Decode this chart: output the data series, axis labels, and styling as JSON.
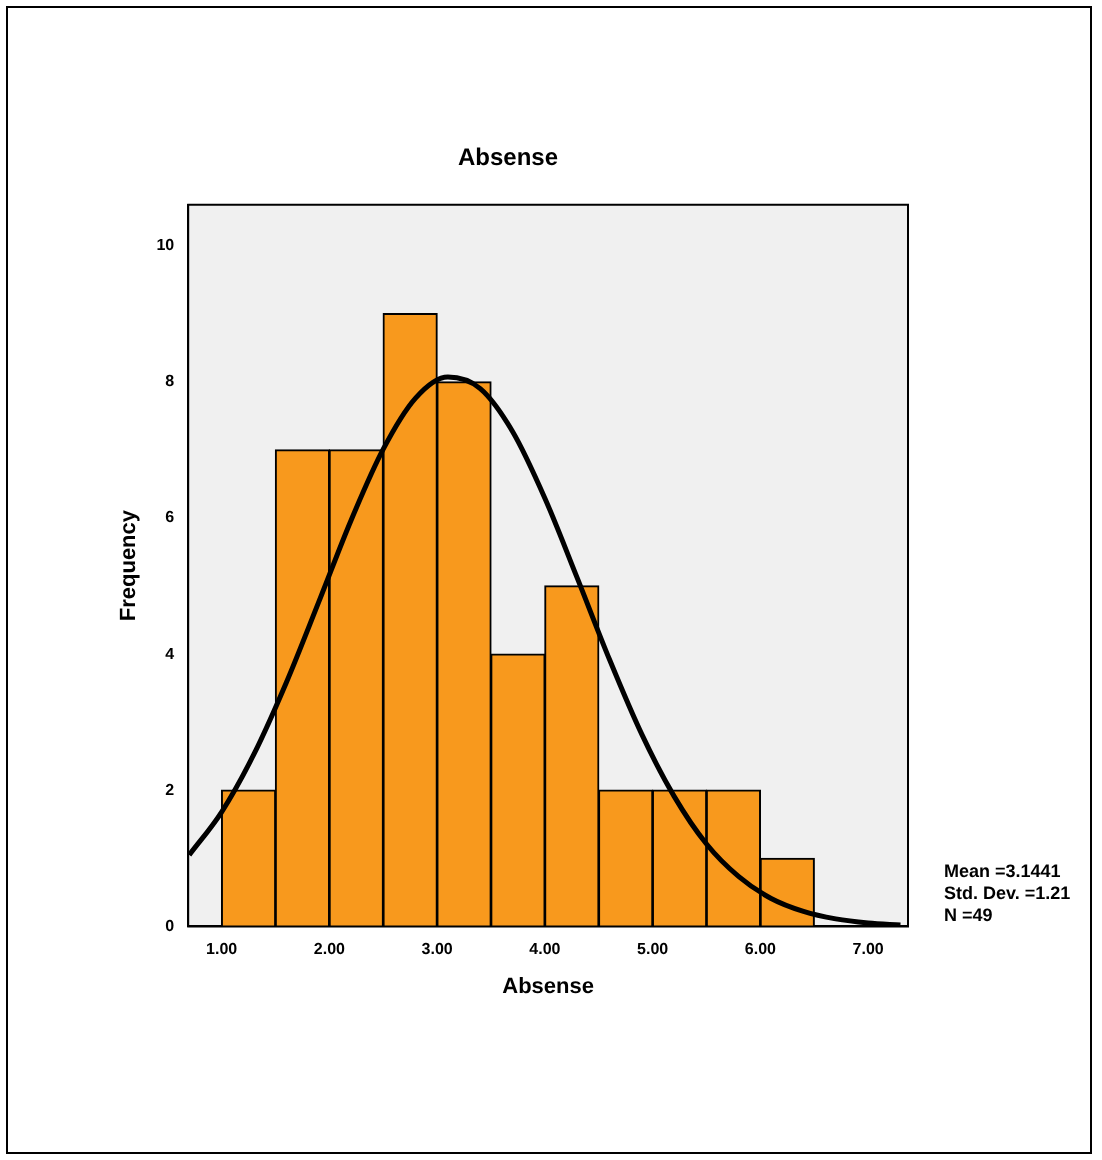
{
  "chart_data": {
    "type": "histogram",
    "title": "Absense",
    "xlabel": "Absense",
    "ylabel": "Frequency",
    "bins": [
      1.0,
      1.5,
      2.0,
      2.5,
      3.0,
      3.5,
      4.0,
      4.5,
      5.0,
      5.5,
      6.0,
      6.5
    ],
    "values": [
      2,
      7,
      7,
      9,
      8,
      4,
      5,
      2,
      2,
      2,
      1
    ],
    "color": "#f8991d",
    "series": [
      {
        "type": "line",
        "color": "#000000",
        "x": [
          0.7,
          1.0,
          1.3,
          1.6,
          1.9,
          2.2,
          2.5,
          2.8,
          3.1,
          3.4,
          3.7,
          4.0,
          4.3,
          4.6,
          4.9,
          5.2,
          5.5,
          5.8,
          6.1,
          6.4,
          6.7,
          7.0,
          7.3
        ],
        "values": [
          1.05,
          1.68,
          2.53,
          3.58,
          4.76,
          5.96,
          7.01,
          7.76,
          8.07,
          7.9,
          7.27,
          6.29,
          5.12,
          3.92,
          2.82,
          1.91,
          1.21,
          0.73,
          0.41,
          0.22,
          0.11,
          0.05,
          0.02
        ]
      }
    ],
    "xlim": [
      0.69,
      7.37
    ],
    "ylim": [
      0,
      10.6
    ],
    "xticks": [
      {
        "value": 1,
        "label": "1.00"
      },
      {
        "value": 2,
        "label": "2.00"
      },
      {
        "value": 3,
        "label": "3.00"
      },
      {
        "value": 4,
        "label": "4.00"
      },
      {
        "value": 5,
        "label": "5.00"
      },
      {
        "value": 6,
        "label": "6.00"
      },
      {
        "value": 7,
        "label": "7.00"
      }
    ],
    "yticks": [
      0,
      2,
      4,
      6,
      8,
      10
    ],
    "grid": false,
    "legend": false,
    "marker": "none",
    "annotations": [
      "Mean =3.1441",
      "Std. Dev. =1.21",
      "N =49"
    ]
  }
}
